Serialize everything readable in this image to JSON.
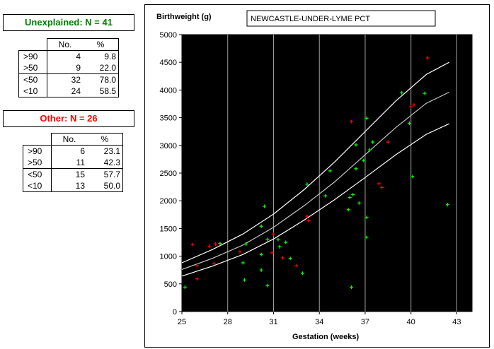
{
  "left": {
    "unexplained": {
      "title": "Unexplained: N = 41",
      "title_color": "#008000",
      "headers": [
        "No.",
        "%"
      ],
      "rows": [
        {
          "label": ">90",
          "no": "4",
          "pct": "9.8"
        },
        {
          "label": ">50",
          "no": "9",
          "pct": "22.0"
        },
        {
          "label": "<50",
          "no": "32",
          "pct": "78.0"
        },
        {
          "label": "<10",
          "no": "24",
          "pct": "58.5"
        }
      ]
    },
    "other": {
      "title": "Other: N = 26",
      "title_color": "#ff0000",
      "headers": [
        "No.",
        "%"
      ],
      "rows": [
        {
          "label": ">90",
          "no": "6",
          "pct": "23.1"
        },
        {
          "label": ">50",
          "no": "11",
          "pct": "42.3"
        },
        {
          "label": "<50",
          "no": "15",
          "pct": "57.7"
        },
        {
          "label": "<10",
          "no": "13",
          "pct": "50.0"
        }
      ]
    }
  },
  "chart_data": {
    "type": "scatter",
    "title": "NEWCASTLE-UNDER-LYME PCT",
    "ylabel": "Birthweight (g)",
    "xlabel": "Gestation (weeks)",
    "xlim": [
      25,
      44
    ],
    "ylim": [
      0,
      5000
    ],
    "x_ticks": [
      25,
      28,
      31,
      34,
      37,
      40,
      43
    ],
    "y_ticks": [
      0,
      500,
      1000,
      1500,
      2000,
      2500,
      3000,
      3500,
      4000,
      4500,
      5000
    ],
    "grid": "vertical",
    "background": "#000000",
    "centile_curves": [
      {
        "x": [
          25,
          27,
          29,
          31,
          33,
          35,
          37,
          39,
          41,
          42.5
        ],
        "y": [
          880,
          1120,
          1400,
          1760,
          2200,
          2700,
          3250,
          3800,
          4280,
          4500
        ]
      },
      {
        "x": [
          25,
          27,
          29,
          31,
          33,
          35,
          37,
          39,
          41,
          42.5
        ],
        "y": [
          760,
          960,
          1200,
          1520,
          1910,
          2340,
          2830,
          3320,
          3760,
          3960
        ]
      },
      {
        "x": [
          25,
          27,
          29,
          31,
          33,
          35,
          37,
          39,
          41,
          42.5
        ],
        "y": [
          640,
          820,
          1030,
          1310,
          1650,
          2020,
          2420,
          2830,
          3200,
          3390
        ]
      }
    ],
    "series": [
      {
        "name": "Unexplained",
        "color": "#00ff00",
        "points": [
          [
            25.2,
            440
          ],
          [
            27.5,
            1230
          ],
          [
            29.0,
            880
          ],
          [
            29.1,
            570
          ],
          [
            29.2,
            1220
          ],
          [
            30.2,
            1030
          ],
          [
            30.2,
            750
          ],
          [
            30.2,
            1540
          ],
          [
            30.4,
            1900
          ],
          [
            30.6,
            1300
          ],
          [
            30.6,
            470
          ],
          [
            31.3,
            1300
          ],
          [
            31.4,
            1170
          ],
          [
            31.8,
            1250
          ],
          [
            32.1,
            960
          ],
          [
            32.9,
            690
          ],
          [
            33.2,
            2300
          ],
          [
            34.4,
            2090
          ],
          [
            34.7,
            2540
          ],
          [
            35.9,
            1840
          ],
          [
            36.0,
            2060
          ],
          [
            36.1,
            440
          ],
          [
            36.2,
            2110
          ],
          [
            36.4,
            2580
          ],
          [
            36.4,
            3010
          ],
          [
            36.6,
            1960
          ],
          [
            36.9,
            2730
          ],
          [
            37.1,
            3490
          ],
          [
            37.1,
            1340
          ],
          [
            37.1,
            1700
          ],
          [
            37.3,
            2920
          ],
          [
            37.5,
            3060
          ],
          [
            39.4,
            3950
          ],
          [
            39.9,
            3400
          ],
          [
            40.1,
            2440
          ],
          [
            40.9,
            3940
          ],
          [
            42.4,
            1930
          ]
        ]
      },
      {
        "name": "Other",
        "color": "#ff0000",
        "points": [
          [
            25.7,
            1210
          ],
          [
            26.0,
            590
          ],
          [
            26.0,
            830
          ],
          [
            26.8,
            1180
          ],
          [
            27.1,
            870
          ],
          [
            27.2,
            1220
          ],
          [
            28.8,
            1080
          ],
          [
            30.9,
            1060
          ],
          [
            31.0,
            1400
          ],
          [
            31.6,
            970
          ],
          [
            32.5,
            830
          ],
          [
            33.2,
            1720
          ],
          [
            33.3,
            1640
          ],
          [
            36.1,
            3430
          ],
          [
            37.9,
            2310
          ],
          [
            38.1,
            2240
          ],
          [
            38.5,
            3060
          ],
          [
            40.0,
            3700
          ],
          [
            40.2,
            3730
          ],
          [
            41.1,
            4580
          ]
        ]
      }
    ]
  }
}
